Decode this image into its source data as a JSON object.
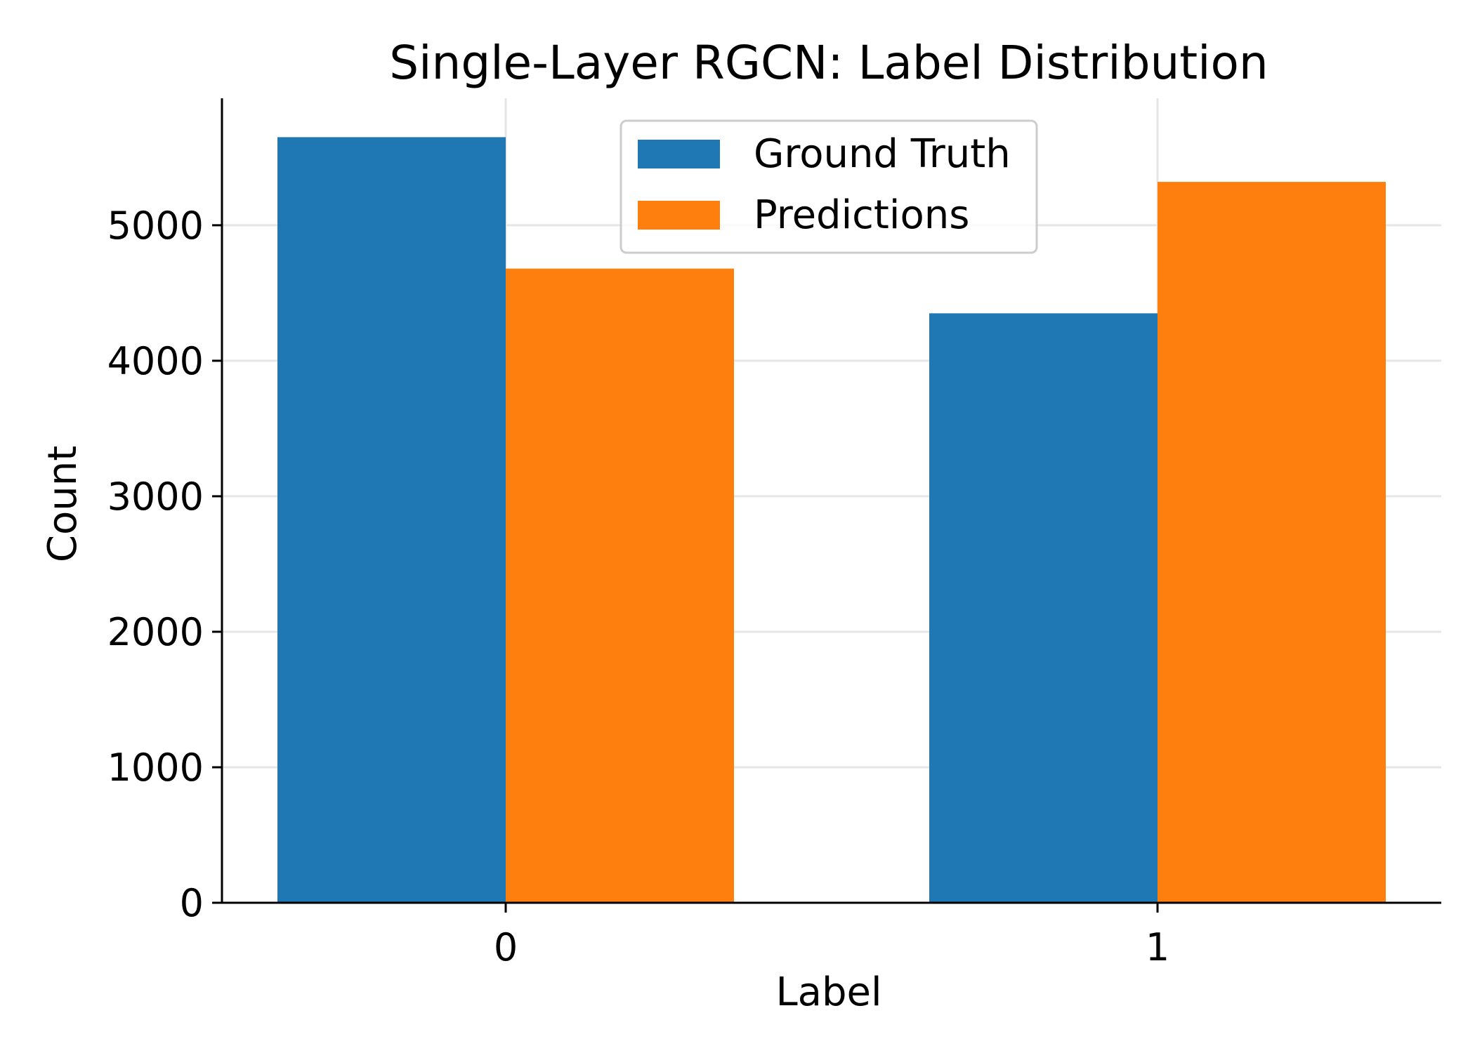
{
  "chart_data": {
    "type": "bar",
    "title": "Single-Layer RGCN: Label Distribution",
    "xlabel": "Label",
    "ylabel": "Count",
    "categories": [
      "0",
      "1"
    ],
    "series": [
      {
        "name": "Ground Truth",
        "values": [
          5650,
          4350
        ],
        "color": "#1f77b4"
      },
      {
        "name": "Predictions",
        "values": [
          4680,
          5320
        ],
        "color": "#ff7f0e"
      }
    ],
    "yticks": [
      0,
      1000,
      2000,
      3000,
      4000,
      5000
    ],
    "ylim": [
      0,
      5937
    ],
    "grid": true,
    "legend_position": "top-center"
  }
}
